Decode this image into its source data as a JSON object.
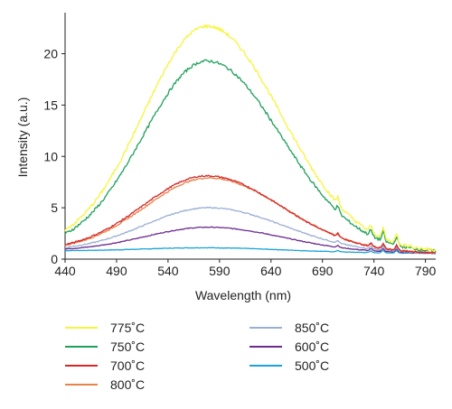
{
  "chart_data": {
    "type": "line",
    "title": "",
    "xlabel": "Wavelength (nm)",
    "ylabel": "Intensity (a.u.)",
    "xlim": [
      440,
      800
    ],
    "ylim": [
      0,
      24
    ],
    "xticks": [
      "440",
      "490",
      "540",
      "590",
      "640",
      "690",
      "740",
      "790"
    ],
    "yticks": [
      "0",
      "5",
      "10",
      "15",
      "20"
    ],
    "grid": false,
    "legend_position": "bottom",
    "series": [
      {
        "name": "775˚C",
        "color": "#f5f53b",
        "peak": 22.8,
        "center": 578,
        "base": 1.0
      },
      {
        "name": "750˚C",
        "color": "#1fa05a",
        "peak": 19.4,
        "center": 578,
        "base": 0.9
      },
      {
        "name": "700˚C",
        "color": "#d62728",
        "peak": 8.2,
        "center": 578,
        "base": 0.8
      },
      {
        "name": "800˚C",
        "color": "#e8834a",
        "peak": 8.0,
        "center": 580,
        "base": 0.8
      },
      {
        "name": "850˚C",
        "color": "#9aaed4",
        "peak": 5.1,
        "center": 580,
        "base": 0.8
      },
      {
        "name": "600˚C",
        "color": "#6b2c8f",
        "peak": 3.2,
        "center": 580,
        "base": 0.8
      },
      {
        "name": "500˚C",
        "color": "#1aa3d6",
        "peak": 1.2,
        "center": 580,
        "base": 0.8
      }
    ]
  },
  "legend": {
    "col1": [
      "775˚C",
      "750˚C",
      "700˚C",
      "800˚C"
    ],
    "col2": [
      "850˚C",
      "600˚C",
      "500˚C"
    ]
  }
}
